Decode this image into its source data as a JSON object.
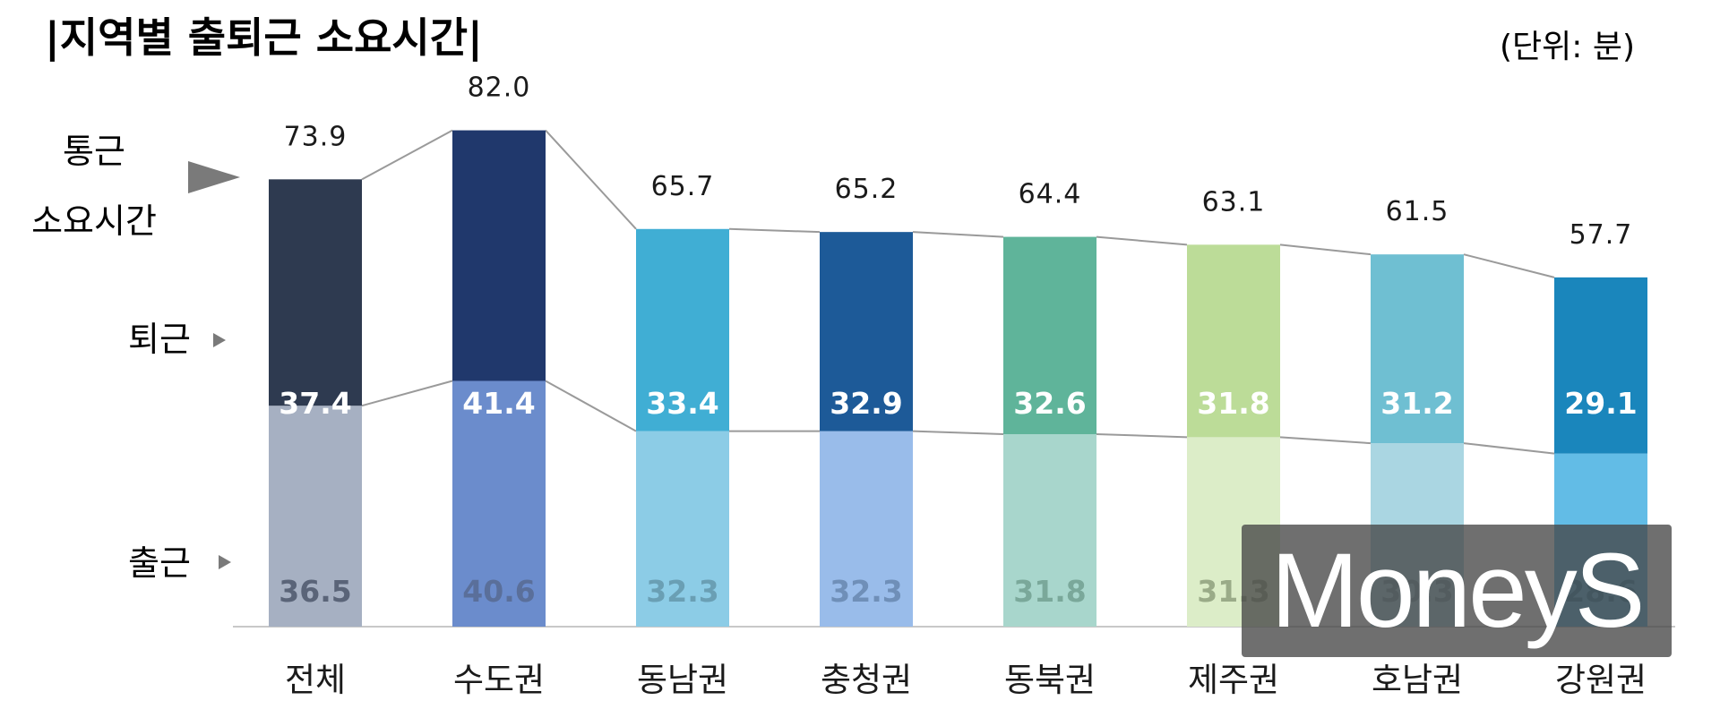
{
  "title": "|지역별 출퇴근 소요시간|",
  "unit": "(단위: 분)",
  "legend": {
    "total_line1": "통근",
    "total_line2": "소요시간",
    "evening": "퇴근",
    "morning": "출근"
  },
  "watermark": "MoneyS",
  "chart_data": {
    "type": "bar",
    "stacked": true,
    "title": "|지역별 출퇴근 소요시간|",
    "ylabel": "",
    "ylim": [
      0,
      88
    ],
    "grid": false,
    "categories": [
      "전체",
      "수도권",
      "동남권",
      "충청권",
      "동북권",
      "제주권",
      "호남권",
      "강원권"
    ],
    "series": [
      {
        "name": "출근",
        "values": [
          36.5,
          40.6,
          32.3,
          32.3,
          31.8,
          31.3,
          30.3,
          28.6
        ]
      },
      {
        "name": "퇴근",
        "values": [
          37.4,
          41.4,
          33.4,
          32.9,
          32.6,
          31.8,
          31.2,
          29.1
        ]
      }
    ],
    "totals": [
      73.9,
      82.0,
      65.7,
      65.2,
      64.4,
      63.1,
      61.5,
      57.7
    ],
    "colors": {
      "evening": [
        "#2e3a50",
        "#20386c",
        "#40aed4",
        "#1d5a98",
        "#5fb49a",
        "#bcdc98",
        "#6fbfd2",
        "#1a86bc"
      ],
      "morning": [
        "#a6b0c2",
        "#6b8ccc",
        "#8ccce6",
        "#99bcea",
        "#a8d6cc",
        "#dcedc8",
        "#aad6e2",
        "#62bce6"
      ],
      "evening_label": [
        "#ffffff",
        "#ffffff",
        "#ffffff",
        "#ffffff",
        "#ffffff",
        "#ffffff",
        "#ffffff",
        "#ffffff"
      ],
      "morning_label": [
        "#5a6478",
        "#5a6f9a",
        "#6a9fb4",
        "#6f8fb8",
        "#7aa89a",
        "#9aab88",
        "#7ea8b4",
        "#3a8cb4"
      ],
      "connector": "#9a9a9a",
      "baseline": "#c8c8c8"
    }
  }
}
